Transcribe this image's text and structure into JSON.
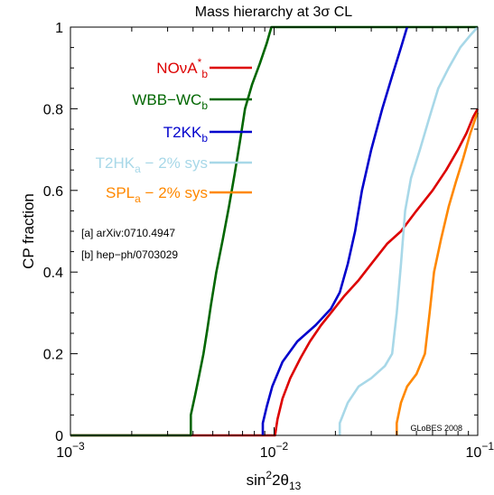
{
  "chart_data": {
    "type": "line",
    "title": "Mass hierarchy at 3σ CL",
    "xlabel": "sin²2θ₁₃",
    "ylabel": "CP fraction",
    "xscale": "log",
    "xlim": [
      0.001,
      0.1
    ],
    "ylim": [
      0,
      1
    ],
    "grid": false,
    "legend": "top-left",
    "x_ticks": [
      {
        "value": 0.001,
        "base": "10",
        "exp": "−3"
      },
      {
        "value": 0.01,
        "base": "10",
        "exp": "−2"
      },
      {
        "value": 0.1,
        "base": "10",
        "exp": "−1"
      }
    ],
    "y_ticks": [
      {
        "value": 0,
        "label": "0"
      },
      {
        "value": 0.2,
        "label": "0.2"
      },
      {
        "value": 0.4,
        "label": "0.4"
      },
      {
        "value": 0.6,
        "label": "0.6"
      },
      {
        "value": 0.8,
        "label": "0.8"
      },
      {
        "value": 1,
        "label": "1"
      }
    ],
    "series": [
      {
        "name": "NOνA*b",
        "label_main": "NOνA",
        "label_sup": "*",
        "label_sub": "b",
        "color": "#dd0000",
        "points": [
          [
            0.001,
            0
          ],
          [
            0.0101,
            0
          ],
          [
            0.0104,
            0.04
          ],
          [
            0.011,
            0.09
          ],
          [
            0.012,
            0.14
          ],
          [
            0.0135,
            0.19
          ],
          [
            0.015,
            0.23
          ],
          [
            0.017,
            0.27
          ],
          [
            0.019,
            0.3
          ],
          [
            0.022,
            0.34
          ],
          [
            0.026,
            0.38
          ],
          [
            0.03,
            0.42
          ],
          [
            0.036,
            0.47
          ],
          [
            0.042,
            0.5
          ],
          [
            0.05,
            0.55
          ],
          [
            0.06,
            0.6
          ],
          [
            0.07,
            0.65
          ],
          [
            0.08,
            0.7
          ],
          [
            0.088,
            0.74
          ],
          [
            0.095,
            0.78
          ],
          [
            0.1,
            0.8
          ]
        ]
      },
      {
        "name": "WBB−WCb",
        "label_main": "WBB−WC",
        "label_sup": "",
        "label_sub": "b",
        "color": "#006600",
        "points": [
          [
            0.001,
            0
          ],
          [
            0.0039,
            0
          ],
          [
            0.0039,
            0.05
          ],
          [
            0.0041,
            0.1
          ],
          [
            0.0043,
            0.15
          ],
          [
            0.0045,
            0.2
          ],
          [
            0.0047,
            0.26
          ],
          [
            0.0049,
            0.32
          ],
          [
            0.0052,
            0.4
          ],
          [
            0.0056,
            0.48
          ],
          [
            0.006,
            0.56
          ],
          [
            0.0064,
            0.64
          ],
          [
            0.0068,
            0.72
          ],
          [
            0.0072,
            0.8
          ],
          [
            0.0078,
            0.86
          ],
          [
            0.0085,
            0.91
          ],
          [
            0.0092,
            0.96
          ],
          [
            0.0097,
            1
          ],
          [
            0.1,
            1
          ]
        ]
      },
      {
        "name": "T2KKb",
        "label_main": "T2KK",
        "label_sup": "",
        "label_sub": "b",
        "color": "#0000cc",
        "points": [
          [
            0.0088,
            0
          ],
          [
            0.0088,
            0.03
          ],
          [
            0.0092,
            0.07
          ],
          [
            0.0098,
            0.12
          ],
          [
            0.011,
            0.18
          ],
          [
            0.013,
            0.23
          ],
          [
            0.016,
            0.27
          ],
          [
            0.019,
            0.31
          ],
          [
            0.021,
            0.35
          ],
          [
            0.023,
            0.42
          ],
          [
            0.025,
            0.5
          ],
          [
            0.027,
            0.6
          ],
          [
            0.03,
            0.7
          ],
          [
            0.034,
            0.8
          ],
          [
            0.038,
            0.88
          ],
          [
            0.042,
            0.95
          ],
          [
            0.045,
            1
          ]
        ]
      },
      {
        "name": "T2HKa − 2% sys",
        "label_main": "T2HK",
        "label_sup": "",
        "label_sub": "a",
        "label_suffix": " − 2% sys",
        "color": "#a8d8e8",
        "points": [
          [
            0.021,
            0
          ],
          [
            0.021,
            0.03
          ],
          [
            0.023,
            0.08
          ],
          [
            0.026,
            0.12
          ],
          [
            0.03,
            0.14
          ],
          [
            0.035,
            0.17
          ],
          [
            0.038,
            0.2
          ],
          [
            0.04,
            0.3
          ],
          [
            0.042,
            0.42
          ],
          [
            0.044,
            0.55
          ],
          [
            0.047,
            0.63
          ],
          [
            0.052,
            0.7
          ],
          [
            0.058,
            0.78
          ],
          [
            0.064,
            0.85
          ],
          [
            0.072,
            0.9
          ],
          [
            0.082,
            0.95
          ],
          [
            0.092,
            0.98
          ],
          [
            0.1,
            1
          ]
        ]
      },
      {
        "name": "SPLa − 2% sys",
        "label_main": "SPL",
        "label_sup": "",
        "label_sub": "a",
        "label_suffix": " − 2% sys",
        "color": "#ff8800",
        "points": [
          [
            0.04,
            0
          ],
          [
            0.04,
            0.03
          ],
          [
            0.042,
            0.08
          ],
          [
            0.045,
            0.12
          ],
          [
            0.05,
            0.15
          ],
          [
            0.055,
            0.2
          ],
          [
            0.058,
            0.3
          ],
          [
            0.061,
            0.4
          ],
          [
            0.066,
            0.48
          ],
          [
            0.072,
            0.56
          ],
          [
            0.078,
            0.62
          ],
          [
            0.085,
            0.68
          ],
          [
            0.092,
            0.74
          ],
          [
            0.098,
            0.78
          ],
          [
            0.1,
            0.79
          ]
        ]
      }
    ],
    "annotations": [
      "[a] arXiv:0710.4947",
      "[b] hep−ph/0703029"
    ],
    "credit": "GLoBES 2008"
  }
}
